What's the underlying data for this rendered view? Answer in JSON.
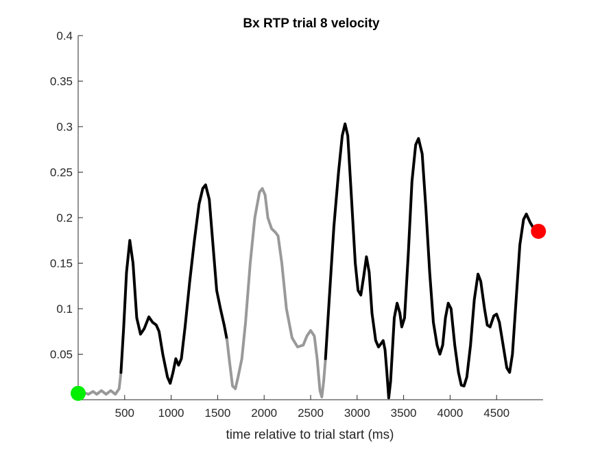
{
  "chart_data": {
    "type": "line",
    "title": "Bx  RTP trial 8 velocity",
    "xlabel": "time relative to trial start (ms)",
    "ylabel": "",
    "xlim": [
      0,
      5000
    ],
    "ylim": [
      0,
      0.4
    ],
    "xticks": [
      500,
      1000,
      1500,
      2000,
      2500,
      3000,
      3500,
      4000,
      4500
    ],
    "xtick_labels": [
      "500",
      "1000",
      "1500",
      "2000",
      "2500",
      "3000",
      "3500",
      "4000",
      "4500"
    ],
    "yticks": [
      0.05,
      0.1,
      0.15,
      0.2,
      0.25,
      0.3,
      0.35,
      0.4
    ],
    "ytick_labels": [
      "0.05",
      "0.1",
      "0.15",
      "0.2",
      "0.25",
      "0.3",
      "0.35",
      "0.4"
    ],
    "series": [
      {
        "segments": [
          {
            "color": "#999999",
            "points": [
              [
                0,
                0.007
              ],
              [
                60,
                0.008
              ],
              [
                110,
                0.006
              ],
              [
                160,
                0.009
              ],
              [
                200,
                0.006
              ],
              [
                250,
                0.01
              ],
              [
                300,
                0.006
              ],
              [
                350,
                0.01
              ],
              [
                400,
                0.006
              ],
              [
                440,
                0.012
              ],
              [
                460,
                0.03
              ]
            ]
          },
          {
            "color": "#000000",
            "points": [
              [
                460,
                0.03
              ],
              [
                490,
                0.08
              ],
              [
                520,
                0.14
              ],
              [
                555,
                0.175
              ],
              [
                590,
                0.15
              ],
              [
                630,
                0.09
              ],
              [
                670,
                0.072
              ],
              [
                710,
                0.078
              ],
              [
                760,
                0.091
              ],
              [
                800,
                0.085
              ],
              [
                840,
                0.082
              ],
              [
                870,
                0.075
              ],
              [
                910,
                0.05
              ],
              [
                960,
                0.025
              ],
              [
                990,
                0.018
              ],
              [
                1020,
                0.03
              ],
              [
                1050,
                0.045
              ],
              [
                1080,
                0.038
              ],
              [
                1110,
                0.045
              ],
              [
                1150,
                0.08
              ],
              [
                1200,
                0.13
              ],
              [
                1250,
                0.175
              ],
              [
                1300,
                0.215
              ],
              [
                1340,
                0.232
              ],
              [
                1370,
                0.236
              ],
              [
                1410,
                0.22
              ],
              [
                1450,
                0.17
              ],
              [
                1490,
                0.12
              ],
              [
                1530,
                0.1
              ],
              [
                1570,
                0.082
              ],
              [
                1600,
                0.066
              ]
            ]
          },
          {
            "color": "#999999",
            "points": [
              [
                1600,
                0.066
              ],
              [
                1630,
                0.04
              ],
              [
                1660,
                0.015
              ],
              [
                1690,
                0.012
              ],
              [
                1720,
                0.025
              ],
              [
                1760,
                0.045
              ],
              [
                1800,
                0.085
              ],
              [
                1850,
                0.15
              ],
              [
                1900,
                0.2
              ],
              [
                1950,
                0.228
              ],
              [
                1980,
                0.232
              ],
              [
                2010,
                0.225
              ],
              [
                2040,
                0.2
              ],
              [
                2080,
                0.188
              ],
              [
                2120,
                0.184
              ],
              [
                2150,
                0.18
              ],
              [
                2190,
                0.15
              ],
              [
                2240,
                0.1
              ],
              [
                2300,
                0.068
              ],
              [
                2360,
                0.058
              ],
              [
                2420,
                0.06
              ],
              [
                2460,
                0.07
              ],
              [
                2500,
                0.076
              ],
              [
                2540,
                0.07
              ],
              [
                2570,
                0.045
              ],
              [
                2600,
                0.01
              ],
              [
                2620,
                0.003
              ],
              [
                2640,
                0.02
              ],
              [
                2660,
                0.045
              ]
            ]
          },
          {
            "color": "#000000",
            "points": [
              [
                2660,
                0.045
              ],
              [
                2700,
                0.11
              ],
              [
                2750,
                0.19
              ],
              [
                2800,
                0.25
              ],
              [
                2840,
                0.29
              ],
              [
                2870,
                0.303
              ],
              [
                2900,
                0.29
              ],
              [
                2940,
                0.22
              ],
              [
                2980,
                0.15
              ],
              [
                3010,
                0.12
              ],
              [
                3040,
                0.115
              ],
              [
                3070,
                0.135
              ],
              [
                3100,
                0.157
              ],
              [
                3130,
                0.14
              ],
              [
                3160,
                0.095
              ],
              [
                3200,
                0.065
              ],
              [
                3230,
                0.058
              ],
              [
                3260,
                0.062
              ],
              [
                3280,
                0.065
              ],
              [
                3300,
                0.055
              ],
              [
                3320,
                0.03
              ],
              [
                3340,
                0.002
              ],
              [
                3360,
                0.02
              ],
              [
                3380,
                0.055
              ],
              [
                3400,
                0.09
              ],
              [
                3430,
                0.106
              ],
              [
                3460,
                0.095
              ],
              [
                3480,
                0.08
              ],
              [
                3510,
                0.09
              ],
              [
                3550,
                0.16
              ],
              [
                3590,
                0.24
              ],
              [
                3630,
                0.28
              ],
              [
                3660,
                0.287
              ],
              [
                3700,
                0.27
              ],
              [
                3740,
                0.21
              ],
              [
                3780,
                0.14
              ],
              [
                3820,
                0.085
              ],
              [
                3860,
                0.06
              ],
              [
                3890,
                0.05
              ],
              [
                3920,
                0.06
              ],
              [
                3950,
                0.09
              ],
              [
                3980,
                0.106
              ],
              [
                4010,
                0.1
              ],
              [
                4050,
                0.06
              ],
              [
                4090,
                0.03
              ],
              [
                4120,
                0.016
              ],
              [
                4150,
                0.015
              ],
              [
                4180,
                0.025
              ],
              [
                4220,
                0.06
              ],
              [
                4260,
                0.11
              ],
              [
                4300,
                0.138
              ],
              [
                4330,
                0.13
              ],
              [
                4370,
                0.1
              ],
              [
                4400,
                0.082
              ],
              [
                4430,
                0.08
              ],
              [
                4470,
                0.092
              ],
              [
                4500,
                0.094
              ],
              [
                4530,
                0.085
              ],
              [
                4570,
                0.06
              ],
              [
                4610,
                0.035
              ],
              [
                4640,
                0.03
              ],
              [
                4670,
                0.05
              ],
              [
                4710,
                0.11
              ],
              [
                4750,
                0.17
              ],
              [
                4790,
                0.198
              ],
              [
                4820,
                0.204
              ],
              [
                4860,
                0.195
              ],
              [
                4900,
                0.188
              ],
              [
                4950,
                0.185
              ]
            ]
          }
        ]
      }
    ],
    "markers": [
      {
        "x": 0,
        "y": 0.007,
        "color": "#00ee00"
      },
      {
        "x": 4950,
        "y": 0.185,
        "color": "#ff0000"
      }
    ],
    "grid": false,
    "legend": "none"
  }
}
